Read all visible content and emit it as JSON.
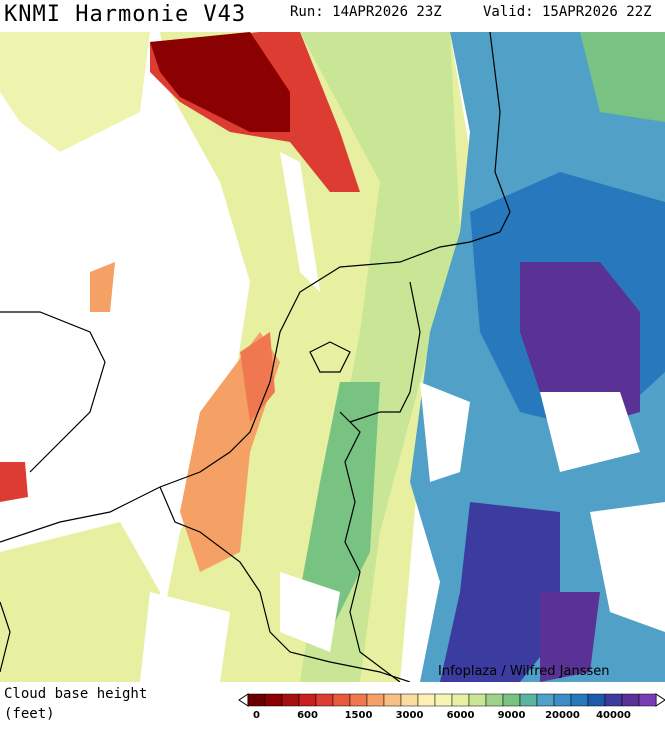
{
  "header": {
    "title": "KNMI Harmonie V43",
    "run": "Run: 14APR2026 23Z",
    "valid": "Valid: 15APR2026 22Z"
  },
  "map": {
    "credit": "Infoplaza / Wilfred Janssen"
  },
  "legend": {
    "title": "Cloud base height",
    "unit": "(feet)",
    "colors": [
      "#6b0000",
      "#8b0000",
      "#a50f0f",
      "#c81e1e",
      "#dc3c32",
      "#e85a3c",
      "#f07850",
      "#f5a064",
      "#f8c086",
      "#fadca0",
      "#fcf0b4",
      "#f5f5b4",
      "#e6f0a0",
      "#c8e696",
      "#a0d28c",
      "#78c382",
      "#5ab4a0",
      "#50a0c8",
      "#3c8cc8",
      "#2878be",
      "#1e5aaa",
      "#3c3ca0",
      "#5a3296",
      "#783cb4"
    ],
    "labels": [
      "0",
      "600",
      "1500",
      "3000",
      "6000",
      "9000",
      "20000",
      "40000"
    ]
  }
}
